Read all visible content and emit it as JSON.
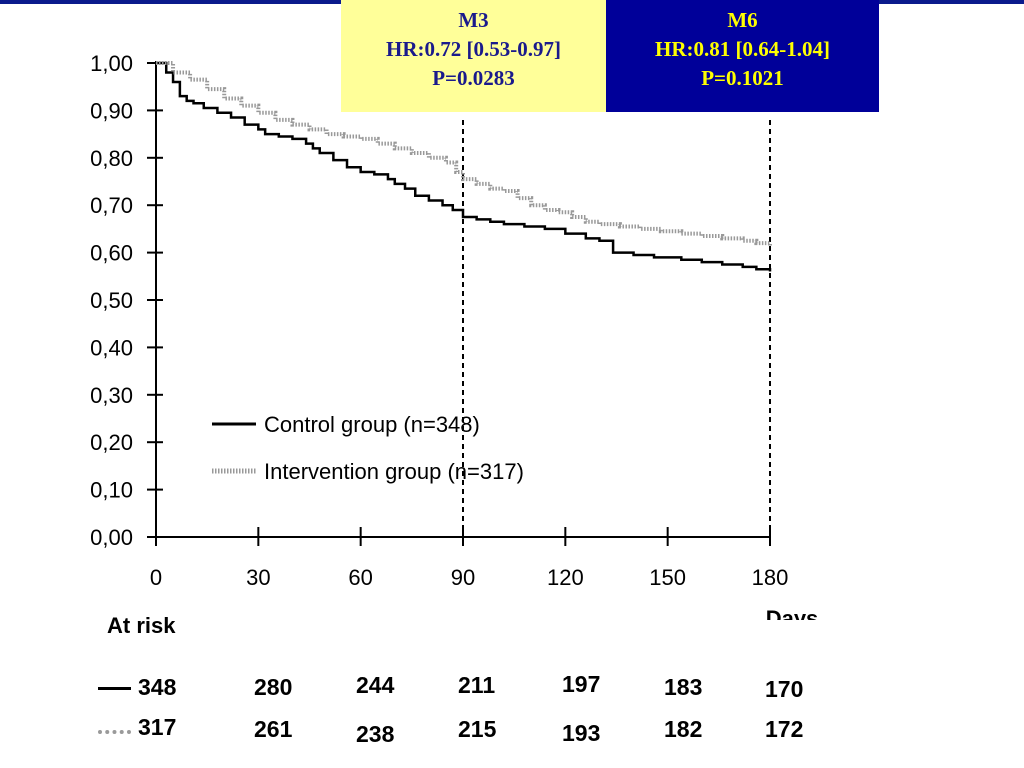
{
  "boxes": {
    "m3": {
      "title": "M3",
      "hr": "HR:0.72 [0.53-0.97]",
      "p": "P=0.0283",
      "bg": "#ffff99",
      "fg": "#1a1a8c"
    },
    "m6": {
      "title": "M6",
      "hr": "HR:0.81 [0.64-1.04]",
      "p": "P=0.1021",
      "bg": "#000099",
      "fg": "#ffff00"
    }
  },
  "chart_data": {
    "type": "line",
    "xlabel": "Days",
    "ylabel": "",
    "xlim": [
      0,
      180
    ],
    "ylim": [
      0,
      1
    ],
    "xticks": [
      "0",
      "30",
      "60",
      "90",
      "120",
      "150",
      "180"
    ],
    "yticks": [
      "0,00",
      "0,10",
      "0,20",
      "0,30",
      "0,40",
      "0,50",
      "0,60",
      "0,70",
      "0,80",
      "0,90",
      "1,00"
    ],
    "vlines": [
      90,
      180
    ],
    "legend_position": "center",
    "series": [
      {
        "name": "Control group (n=348)",
        "style": "solid",
        "color": "#000000",
        "points": [
          [
            0,
            1.0
          ],
          [
            3,
            0.98
          ],
          [
            5,
            0.96
          ],
          [
            7,
            0.93
          ],
          [
            9,
            0.92
          ],
          [
            11,
            0.915
          ],
          [
            14,
            0.905
          ],
          [
            18,
            0.895
          ],
          [
            22,
            0.885
          ],
          [
            26,
            0.87
          ],
          [
            30,
            0.86
          ],
          [
            32,
            0.85
          ],
          [
            36,
            0.845
          ],
          [
            40,
            0.84
          ],
          [
            44,
            0.83
          ],
          [
            46,
            0.82
          ],
          [
            48,
            0.81
          ],
          [
            52,
            0.795
          ],
          [
            56,
            0.78
          ],
          [
            60,
            0.77
          ],
          [
            64,
            0.765
          ],
          [
            68,
            0.755
          ],
          [
            70,
            0.745
          ],
          [
            73,
            0.735
          ],
          [
            76,
            0.72
          ],
          [
            80,
            0.71
          ],
          [
            84,
            0.7
          ],
          [
            87,
            0.69
          ],
          [
            90,
            0.675
          ],
          [
            94,
            0.67
          ],
          [
            98,
            0.665
          ],
          [
            102,
            0.66
          ],
          [
            108,
            0.655
          ],
          [
            114,
            0.65
          ],
          [
            120,
            0.64
          ],
          [
            126,
            0.63
          ],
          [
            130,
            0.625
          ],
          [
            134,
            0.6
          ],
          [
            140,
            0.595
          ],
          [
            146,
            0.59
          ],
          [
            154,
            0.585
          ],
          [
            160,
            0.58
          ],
          [
            166,
            0.575
          ],
          [
            172,
            0.57
          ],
          [
            176,
            0.565
          ],
          [
            180,
            0.56
          ]
        ]
      },
      {
        "name": "Intervention group (n=317)",
        "style": "dotted",
        "color": "#999999",
        "points": [
          [
            0,
            1.0
          ],
          [
            5,
            0.98
          ],
          [
            10,
            0.965
          ],
          [
            15,
            0.945
          ],
          [
            20,
            0.925
          ],
          [
            25,
            0.91
          ],
          [
            30,
            0.895
          ],
          [
            35,
            0.88
          ],
          [
            40,
            0.87
          ],
          [
            45,
            0.86
          ],
          [
            50,
            0.85
          ],
          [
            55,
            0.845
          ],
          [
            60,
            0.84
          ],
          [
            65,
            0.83
          ],
          [
            70,
            0.82
          ],
          [
            75,
            0.81
          ],
          [
            80,
            0.8
          ],
          [
            85,
            0.79
          ],
          [
            88,
            0.77
          ],
          [
            90,
            0.755
          ],
          [
            94,
            0.745
          ],
          [
            98,
            0.735
          ],
          [
            102,
            0.73
          ],
          [
            106,
            0.715
          ],
          [
            110,
            0.7
          ],
          [
            114,
            0.69
          ],
          [
            118,
            0.685
          ],
          [
            122,
            0.675
          ],
          [
            126,
            0.665
          ],
          [
            130,
            0.66
          ],
          [
            136,
            0.655
          ],
          [
            142,
            0.65
          ],
          [
            148,
            0.645
          ],
          [
            154,
            0.64
          ],
          [
            160,
            0.635
          ],
          [
            166,
            0.63
          ],
          [
            172,
            0.625
          ],
          [
            176,
            0.62
          ],
          [
            180,
            0.615
          ]
        ]
      }
    ]
  },
  "at_risk": {
    "label": "At risk",
    "rows": [
      {
        "style": "solid",
        "values": [
          "348",
          "280",
          "244",
          "211",
          "197",
          "183",
          "170"
        ]
      },
      {
        "style": "dotted",
        "values": [
          "317",
          "261",
          "238",
          "215",
          "193",
          "182",
          "172"
        ]
      }
    ]
  }
}
